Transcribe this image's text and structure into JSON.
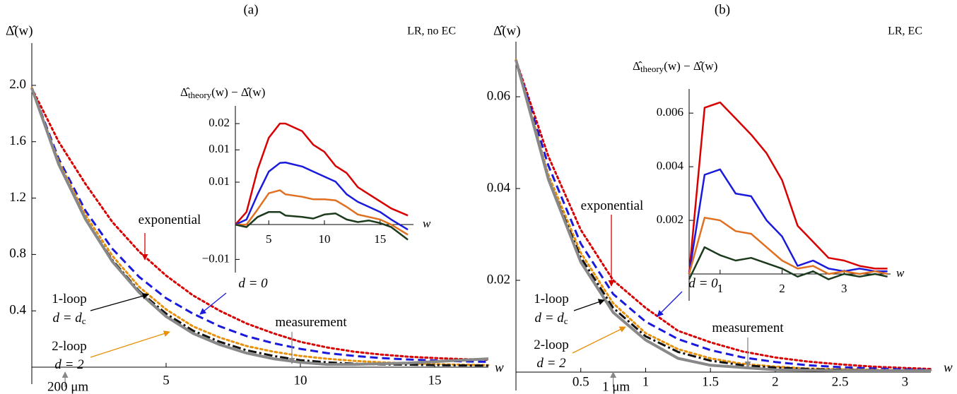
{
  "chart_data": [
    {
      "type": "line",
      "title": "(a)",
      "note": "LR, no EC",
      "y_label": "Δ̂(w)",
      "x_label": "w",
      "xlim": [
        0,
        17
      ],
      "ylim": [
        -0.12,
        2.3
      ],
      "xticks": [
        5,
        10,
        15
      ],
      "yticks": [
        0.4,
        0.8,
        1.2,
        1.6,
        {
          "value": 2,
          "label": "2.0"
        }
      ],
      "x": [
        0,
        1,
        2,
        3,
        4,
        5,
        6,
        7,
        8,
        9,
        10,
        11,
        12,
        13,
        14,
        15,
        16,
        17
      ],
      "series": [
        {
          "color": "#d80000",
          "style": "dotted",
          "values": [
            1.98,
            1.6,
            1.3,
            1.03,
            0.82,
            0.65,
            0.51,
            0.4,
            0.31,
            0.24,
            0.18,
            0.14,
            0.11,
            0.09,
            0.075,
            0.065,
            0.058,
            0.053
          ]
        },
        {
          "color": "#1a1adc",
          "style": "dashed",
          "values": [
            1.98,
            1.48,
            1.11,
            0.84,
            0.64,
            0.49,
            0.38,
            0.29,
            0.22,
            0.17,
            0.13,
            0.1,
            0.08,
            0.065,
            0.055,
            0.048,
            0.042,
            0.038
          ]
        },
        {
          "color": "#e8900a",
          "style": "dotted",
          "values": [
            1.98,
            1.46,
            1.08,
            0.79,
            0.57,
            0.41,
            0.29,
            0.21,
            0.15,
            0.11,
            0.08,
            0.06,
            0.045,
            0.035,
            0.028,
            0.022,
            0.018,
            0.015
          ]
        },
        {
          "color": "#111111",
          "style": "dashdot",
          "values": [
            1.98,
            1.44,
            1.05,
            0.76,
            0.54,
            0.38,
            0.26,
            0.18,
            0.12,
            0.08,
            0.05,
            0.035,
            0.025,
            0.02,
            0.018,
            0.015,
            0.013,
            0.012
          ]
        },
        {
          "color": "#888888",
          "style": "solid",
          "values": [
            1.98,
            1.44,
            1.05,
            0.75,
            0.53,
            0.36,
            0.24,
            0.16,
            0.1,
            0.06,
            0.035,
            0.02,
            0.02,
            0.025,
            0.03,
            0.04,
            0.05,
            0.06
          ]
        }
      ],
      "annotations": [
        {
          "text": "exponential",
          "color": "#d80000"
        },
        {
          "text": "d = 0",
          "color": "#1a1adc"
        },
        {
          "text": "1-loop",
          "color": "#000000"
        },
        {
          "text": "d = d",
          "sub": "c",
          "color": "#000000"
        },
        {
          "text": "2-loop",
          "color": "#e8900a"
        },
        {
          "text": "d = 2",
          "color": "#e8900a"
        },
        {
          "text": "measurement",
          "color": "#888888"
        }
      ],
      "scale_marker": {
        "x": 1.24,
        "label": "200 μm"
      }
    },
    {
      "type": "line",
      "title_parts": [
        "Δ̂",
        "theory",
        "(w) − Δ̂(w)"
      ],
      "x_label": "w",
      "xlim": [
        2,
        18
      ],
      "ylim": [
        -0.0095,
        0.0235
      ],
      "xticks": [
        5,
        10,
        15
      ],
      "yticks": [
        {
          "value": 0.02,
          "label": "0.02"
        },
        {
          "value": 0.0148,
          "label": "0.01"
        },
        {
          "value": 0.0084,
          "label": "0.01"
        },
        {
          "value": -0.0069,
          "label": "−0.01"
        }
      ],
      "x": [
        2,
        3,
        4,
        5,
        6,
        6.5,
        8,
        9,
        10,
        11,
        12,
        13,
        14,
        15,
        16,
        17.5
      ],
      "series": [
        {
          "color": "#d80000",
          "style": "solid",
          "values": [
            0,
            0.0025,
            0.0109,
            0.0172,
            0.02,
            0.02,
            0.0185,
            0.0158,
            0.0144,
            0.0116,
            0.0102,
            0.0074,
            0.006,
            0.0046,
            0.0032,
            0.0018
          ]
        },
        {
          "color": "#1a1adc",
          "style": "solid",
          "values": [
            0,
            0.001,
            0.006,
            0.0105,
            0.0122,
            0.0123,
            0.0115,
            0.0105,
            0.0095,
            0.0085,
            0.006,
            0.0045,
            0.0035,
            0.0025,
            0.001,
            -0.001
          ]
        },
        {
          "color": "#e07020",
          "style": "solid",
          "values": [
            0,
            0,
            0.003,
            0.0062,
            0.0068,
            0.006,
            0.0055,
            0.005,
            0.005,
            0.0048,
            0.0035,
            0.002,
            0.0015,
            0.001,
            0,
            -0.002
          ]
        },
        {
          "color": "#1c3a1c",
          "style": "solid",
          "values": [
            0,
            -0.0005,
            0.0015,
            0.0025,
            0.0025,
            0.0018,
            0.0015,
            0.0012,
            0.002,
            0.0022,
            0.001,
            0.0005,
            0.0008,
            0.0003,
            -0.0005,
            -0.003
          ]
        }
      ]
    },
    {
      "type": "line",
      "title": "(b)",
      "note": "LR, EC",
      "y_label": "Δ̂(w)",
      "x_label": "w",
      "xlim": [
        0,
        3.2
      ],
      "ylim": [
        -0.004,
        0.072
      ],
      "xticks": [
        0.5,
        1,
        1.5,
        2,
        2.5,
        3
      ],
      "yticks": [
        0.02,
        0.04,
        0.06
      ],
      "x": [
        0,
        0.25,
        0.5,
        0.75,
        1,
        1.25,
        1.5,
        1.75,
        2,
        2.25,
        2.5,
        2.75,
        3,
        3.2
      ],
      "series": [
        {
          "color": "#d80000",
          "style": "dotted",
          "values": [
            0.068,
            0.047,
            0.031,
            0.02,
            0.014,
            0.009,
            0.0065,
            0.0045,
            0.0032,
            0.0023,
            0.0017,
            0.0012,
            0.0009,
            0.0007
          ]
        },
        {
          "color": "#1a1adc",
          "style": "dashed",
          "values": [
            0.068,
            0.045,
            0.028,
            0.017,
            0.011,
            0.0072,
            0.0048,
            0.0032,
            0.0022,
            0.0015,
            0.0011,
            0.0008,
            0.0006,
            0.0005
          ]
        },
        {
          "color": "#e8900a",
          "style": "dotted",
          "values": [
            0.068,
            0.043,
            0.026,
            0.015,
            0.0085,
            0.005,
            0.003,
            0.0018,
            0.0012,
            0.0008,
            0.0006,
            0.0005,
            0.0004,
            0.0004
          ]
        },
        {
          "color": "#111111",
          "style": "dashdot",
          "values": [
            0.068,
            0.042,
            0.025,
            0.014,
            0.0078,
            0.0044,
            0.0025,
            0.0015,
            0.001,
            0.0007,
            0.0005,
            0.0004,
            0.0003,
            0.0003
          ]
        },
        {
          "color": "#888888",
          "style": "solid",
          "values": [
            0.068,
            0.042,
            0.024,
            0.013,
            0.007,
            0.003,
            0.0015,
            0.001,
            0.0005,
            0.0004,
            0.0003,
            0.0003,
            0.0003,
            0.0003
          ]
        }
      ],
      "annotations": [
        {
          "text": "exponential",
          "color": "#d80000"
        },
        {
          "text": "d = 0",
          "color": "#1a1adc"
        },
        {
          "text": "1-loop",
          "color": "#000000"
        },
        {
          "text": "d = d",
          "sub": "c",
          "color": "#000000"
        },
        {
          "text": "2-loop",
          "color": "#e8900a"
        },
        {
          "text": "d = 2",
          "color": "#e8900a"
        },
        {
          "text": "measurement",
          "color": "#888888"
        }
      ],
      "scale_marker": {
        "x": 0.75,
        "label": "1 μm"
      }
    },
    {
      "type": "line",
      "title_parts": [
        "Δ̂",
        "theory",
        "(w) − Δ̂(w)"
      ],
      "x_label": "w",
      "xlim": [
        0.5,
        3.75
      ],
      "ylim": [
        -0.001,
        0.0069
      ],
      "xticks": [
        1,
        2,
        3
      ],
      "yticks": [
        0.002,
        0.004,
        0.006
      ],
      "x": [
        0.5,
        0.75,
        1,
        1.25,
        1.5,
        1.75,
        2,
        2.25,
        2.5,
        2.75,
        3,
        3.25,
        3.5,
        3.7
      ],
      "series": [
        {
          "color": "#d80000",
          "style": "solid",
          "values": [
            0,
            0.0062,
            0.0064,
            0.0058,
            0.0052,
            0.0045,
            0.0035,
            0.0018,
            0.0012,
            0.0006,
            0.0005,
            0.0003,
            0.0002,
            0.0002
          ]
        },
        {
          "color": "#1a1adc",
          "style": "solid",
          "values": [
            0,
            0.0037,
            0.0039,
            0.003,
            0.0029,
            0.002,
            0.0014,
            0.0003,
            0.0005,
            0.0002,
            0.0001,
            0.0002,
            0.0001,
            0.0001
          ]
        },
        {
          "color": "#e07020",
          "style": "solid",
          "values": [
            0,
            0.0021,
            0.002,
            0.0016,
            0.0015,
            0.001,
            0.0005,
            0.0002,
            0.0003,
            0,
            0.0001,
            0,
            0.0001,
            0
          ]
        },
        {
          "color": "#1c3a1c",
          "style": "solid",
          "values": [
            -0.0002,
            0.001,
            0.0007,
            0.0005,
            0.0006,
            0.0004,
            0.0002,
            -0.0001,
            0.0001,
            -0.0002,
            0,
            -0.0001,
            0,
            -0.0001
          ]
        }
      ]
    }
  ]
}
